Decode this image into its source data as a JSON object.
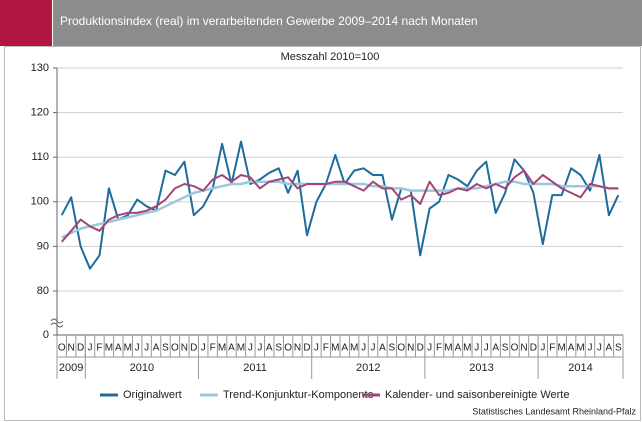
{
  "header": {
    "title": "Produktionsindex (real) im verarbeitenden Gewerbe 2009–2014 nach Monaten"
  },
  "chart_data": {
    "type": "line",
    "subtitle": "Messzahl 2010=100",
    "categories": [
      "O",
      "N",
      "D",
      "J",
      "F",
      "M",
      "A",
      "M",
      "J",
      "J",
      "A",
      "S",
      "O",
      "N",
      "D",
      "J",
      "F",
      "M",
      "A",
      "M",
      "J",
      "J",
      "A",
      "S",
      "O",
      "N",
      "D",
      "J",
      "F",
      "M",
      "A",
      "M",
      "J",
      "J",
      "A",
      "S",
      "O",
      "N",
      "D",
      "J",
      "F",
      "M",
      "A",
      "M",
      "J",
      "J",
      "A",
      "S",
      "O",
      "N",
      "D",
      "J",
      "F",
      "M",
      "A",
      "M",
      "J",
      "J",
      "A",
      "S"
    ],
    "year_labels": [
      "2009",
      "2010",
      "2011",
      "2012",
      "2013",
      "2014"
    ],
    "series": [
      {
        "name": "Originalwert",
        "color": "#1d6c9b",
        "values": [
          97,
          101,
          90,
          85,
          88,
          103,
          96,
          97,
          100.5,
          99,
          98,
          107,
          106,
          109,
          97,
          99,
          103,
          113,
          104,
          113.5,
          104,
          105,
          106.5,
          107.5,
          102,
          107,
          92.5,
          100,
          104,
          110.5,
          104,
          107,
          107.5,
          106,
          106,
          96,
          103,
          102.5,
          88,
          98.5,
          100,
          106,
          105,
          103.5,
          107,
          109,
          97.5,
          102,
          109.5,
          107,
          102,
          90.5,
          101.5,
          101.5,
          107.5,
          106,
          102.5,
          110.5,
          97,
          101.5
        ]
      },
      {
        "name": "Trend-Konjunktur-Komponente",
        "color": "#9cc8dc",
        "values": [
          92,
          93,
          94,
          94.5,
          95,
          95.5,
          96,
          96.5,
          97,
          97.5,
          98,
          99,
          100,
          101,
          102,
          102.5,
          103,
          103.5,
          104,
          104,
          104.5,
          104.5,
          104.5,
          104.5,
          104,
          104,
          104,
          104,
          104,
          104,
          104,
          104,
          104,
          103.5,
          103.5,
          103,
          103,
          102.5,
          102.5,
          102.5,
          102.5,
          102.5,
          103,
          103,
          103,
          103.5,
          104,
          104.5,
          104.5,
          104,
          104,
          104,
          104,
          103.5,
          103.5,
          103.5,
          103.5,
          103.5,
          103,
          103
        ]
      },
      {
        "name": "Kalender- und saisonbereinigte Werte",
        "color": "#a3457a",
        "values": [
          91,
          93.5,
          96,
          94.5,
          93.5,
          96,
          97,
          97.5,
          97.5,
          98,
          99,
          100.5,
          103,
          104,
          103.5,
          102.5,
          105,
          106,
          104.5,
          106,
          105.5,
          103,
          104.5,
          105,
          105.5,
          103,
          104,
          104,
          104,
          104.5,
          104.5,
          103.5,
          102.5,
          104.5,
          103,
          103,
          100.5,
          101.5,
          99.5,
          104.5,
          101.5,
          102,
          103,
          102.5,
          104,
          103,
          104,
          103,
          105.5,
          107,
          104,
          106,
          104.5,
          103,
          102,
          101,
          104,
          103.5,
          103,
          103
        ]
      }
    ],
    "ylim": [
      0,
      130
    ],
    "yticks": [
      0,
      80,
      90,
      100,
      110,
      120,
      130
    ],
    "axis_break": [
      0,
      80
    ],
    "grid": true,
    "legend": "bottom"
  },
  "source": "Statistisches Landesamt Rheinland-Pfalz"
}
